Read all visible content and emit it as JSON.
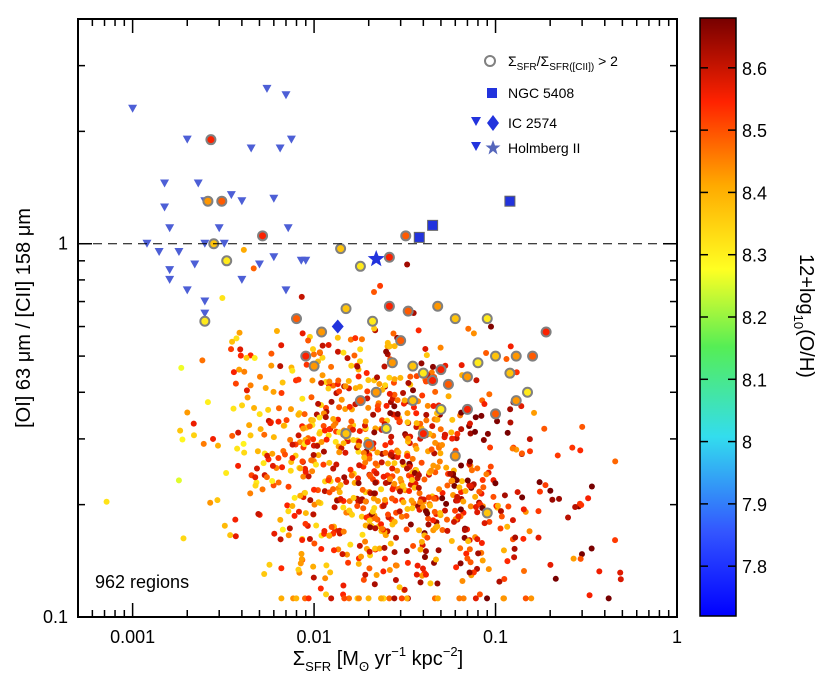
{
  "chart_data": {
    "type": "scatter",
    "title": "",
    "xscale": "log",
    "yscale": "log",
    "xlim": [
      0.0005,
      1
    ],
    "ylim": [
      0.1,
      4
    ],
    "xticks": [
      {
        "value": 0.001,
        "label": "0.001"
      },
      {
        "value": 0.01,
        "label": "0.01"
      },
      {
        "value": 0.1,
        "label": "0.1"
      },
      {
        "value": 1,
        "label": "1"
      }
    ],
    "yticks": [
      {
        "value": 0.1,
        "label": "0.1"
      },
      {
        "value": 1,
        "label": "1"
      }
    ],
    "xlabel": {
      "main": "Σ",
      "sub": "SFR",
      "rest": " [M",
      "sub2": "ʘ",
      "rest2": " yr",
      "sup1": "−1",
      "rest3": " kpc",
      "sup2": "−2",
      "rest4": "]"
    },
    "ylabel": "[OI] 63 μm / [CII] 158 μm",
    "hline": {
      "y": 1,
      "style": "dashed"
    },
    "annotation": "962 regions",
    "colorbar": {
      "min": 7.72,
      "max": 8.68,
      "ticks": [
        "7.8",
        "7.9",
        "8",
        "8.1",
        "8.2",
        "8.3",
        "8.4",
        "8.5",
        "8.6"
      ],
      "label": {
        "pre": "12+log",
        "sub": "10",
        "post": "(O/H)"
      }
    },
    "legend": [
      {
        "marker": "open-circle",
        "color": "#808080",
        "label_parts": {
          "a": "Σ",
          "a_sub": "SFR",
          "b": "/Σ",
          "b_sub": "SFR([CII])",
          "c": " > 2"
        }
      },
      {
        "marker": "square",
        "color": "#2233dd",
        "label": "NGC 5408"
      },
      {
        "marker": "triangle-diamond",
        "color": "#2233dd",
        "label": "IC 2574"
      },
      {
        "marker": "triangle-star",
        "color": "#2233dd",
        "label": "Holmberg II"
      }
    ],
    "series": [
      {
        "name": "NGC 5408",
        "marker": "square",
        "color": "#2233dd",
        "x": [
          0.038,
          0.045,
          0.12
        ],
        "y": [
          1.04,
          1.12,
          1.3
        ]
      },
      {
        "name": "IC 2574",
        "marker": "diamond",
        "color": "#2233dd",
        "x": [
          0.0135
        ],
        "y": [
          0.6
        ]
      },
      {
        "name": "IC 2574 / Holmberg II (triangles)",
        "marker": "triangle",
        "color": "#4d5fd6",
        "x": [
          0.001,
          0.0055,
          0.007,
          0.0015,
          0.0025,
          0.004,
          0.006,
          0.002,
          0.0045,
          0.0075,
          0.0015,
          0.0023,
          0.0035,
          0.0065,
          0.0016,
          0.003,
          0.0072,
          0.0025,
          0.0032,
          0.002,
          0.006,
          0.0085,
          0.0014,
          0.0022,
          0.004,
          0.009,
          0.005,
          0.0018,
          0.0016,
          0.0025,
          0.0016,
          0.0012,
          0.007,
          0.0025
        ],
        "y": [
          2.3,
          2.6,
          2.5,
          1.25,
          1.3,
          1.3,
          1.32,
          1.9,
          1.8,
          1.9,
          1.45,
          1.45,
          1.35,
          1.8,
          1.1,
          1.1,
          1.1,
          1.0,
          1.0,
          0.75,
          0.92,
          0.9,
          0.95,
          0.88,
          0.8,
          0.9,
          0.88,
          0.95,
          0.85,
          0.65,
          0.8,
          1.0,
          0.75,
          0.7
        ]
      },
      {
        "name": "Holmberg II",
        "marker": "star",
        "color": "#2233dd",
        "x": [
          0.022
        ],
        "y": [
          0.91
        ]
      },
      {
        "name": "Σ_SFR/Σ_SFR([CII]) > 2",
        "marker": "ringed-circle",
        "color": "#808080",
        "x": [
          0.0027,
          0.0031,
          0.0026,
          0.0028,
          0.0033,
          0.0052,
          0.008,
          0.01,
          0.014,
          0.018,
          0.026,
          0.032,
          0.011,
          0.015,
          0.021,
          0.026,
          0.033,
          0.048,
          0.06,
          0.09,
          0.19,
          0.16,
          0.13,
          0.1,
          0.08,
          0.05,
          0.03,
          0.027,
          0.035,
          0.04,
          0.045,
          0.055,
          0.07,
          0.12,
          0.15,
          0.009,
          0.018,
          0.022,
          0.035,
          0.05,
          0.07,
          0.1,
          0.13,
          0.015,
          0.025,
          0.04,
          0.02,
          0.06,
          0.09,
          0.0025
        ],
        "y": [
          1.9,
          1.3,
          1.3,
          1.0,
          0.9,
          1.05,
          0.63,
          0.47,
          0.97,
          0.87,
          0.92,
          1.05,
          0.58,
          0.67,
          0.62,
          0.68,
          0.66,
          0.68,
          0.63,
          0.63,
          0.58,
          0.5,
          0.5,
          0.5,
          0.48,
          0.46,
          0.55,
          0.48,
          0.47,
          0.45,
          0.43,
          0.42,
          0.44,
          0.45,
          0.4,
          0.5,
          0.38,
          0.4,
          0.38,
          0.36,
          0.36,
          0.35,
          0.38,
          0.31,
          0.32,
          0.31,
          0.29,
          0.27,
          0.19,
          0.62
        ]
      }
    ],
    "cloud": {
      "name": "962 regions (colour = 12+log10(O/H))",
      "marker": "filled-circle",
      "count": 962,
      "x_log_center": -1.65,
      "x_log_spread": 0.45,
      "y_log_center": -0.6,
      "y_log_spread": 0.18,
      "x_log_range": [
        -3.15,
        -0.2
      ],
      "y_log_range": [
        -0.95,
        0.35
      ],
      "color_value_range": [
        8.22,
        8.68
      ]
    }
  }
}
